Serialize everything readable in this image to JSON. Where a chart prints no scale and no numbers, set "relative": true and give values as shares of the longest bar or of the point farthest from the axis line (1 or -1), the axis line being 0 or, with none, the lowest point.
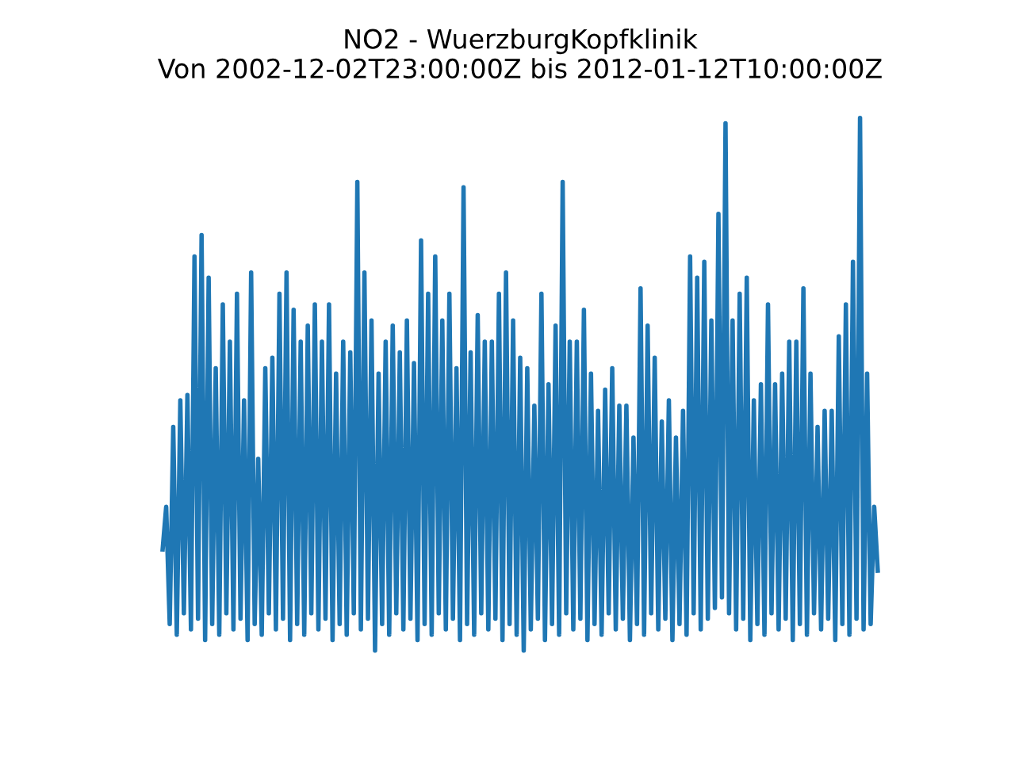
{
  "chart_data": {
    "type": "line",
    "title": "NO2 - WuerzburgKopfklinik",
    "subtitle": "Von 2002-12-02T23:00:00Z bis 2012-01-12T10:00:00Z",
    "relative": true,
    "legend": false,
    "marker": "none",
    "line_style": "solid",
    "categories": [
      null,
      null,
      null,
      null,
      null,
      null,
      null,
      null,
      null,
      null,
      null,
      null,
      null,
      null,
      null,
      null,
      null,
      null,
      null,
      null,
      null,
      null,
      null,
      null,
      null,
      null,
      null,
      null,
      null,
      null,
      null,
      null,
      null,
      null,
      null,
      null,
      null,
      null,
      null,
      null,
      null,
      null,
      null,
      null,
      null,
      null,
      null,
      null,
      null,
      null,
      null,
      null,
      null,
      null,
      null,
      null,
      null,
      null,
      null,
      null,
      null,
      null,
      null,
      null,
      null,
      null,
      null,
      null,
      null,
      null,
      null,
      null,
      null,
      null,
      null,
      null,
      null,
      null,
      null,
      null,
      null,
      null,
      null,
      null,
      null,
      null,
      null,
      null,
      null,
      null,
      null,
      null,
      null,
      null,
      null,
      null,
      null,
      null,
      null,
      null,
      null,
      null,
      null,
      null,
      null,
      null,
      null,
      null,
      null,
      null,
      null,
      null,
      null,
      null,
      null,
      null,
      null,
      null,
      null,
      null,
      null,
      null,
      null,
      null,
      null,
      null,
      null,
      null,
      null,
      null,
      null,
      null,
      null,
      null,
      null,
      null,
      null,
      null,
      null,
      null,
      null,
      null,
      null,
      null,
      null,
      null,
      null,
      null,
      null,
      null,
      null,
      null,
      null,
      null,
      null,
      null,
      null,
      null,
      null,
      null,
      null,
      null,
      null,
      null,
      null,
      null,
      null,
      null,
      null,
      null,
      null,
      null,
      null,
      null,
      null,
      null,
      null,
      null,
      null,
      null,
      null,
      null,
      null,
      null,
      null,
      null,
      null,
      null,
      null,
      null,
      null,
      null,
      null,
      null,
      null,
      null,
      null,
      null,
      null,
      null,
      null,
      null,
      null
    ],
    "series": [
      {
        "color": "#1f77b4",
        "values": [
          0.19,
          0.27,
          0.05,
          0.42,
          0.03,
          0.47,
          0.07,
          0.48,
          0.04,
          0.74,
          0.06,
          0.78,
          0.02,
          0.7,
          0.05,
          0.53,
          0.03,
          0.65,
          0.07,
          0.58,
          0.04,
          0.67,
          0.06,
          0.47,
          0.02,
          0.71,
          0.05,
          0.36,
          0.03,
          0.53,
          0.07,
          0.55,
          0.04,
          0.67,
          0.06,
          0.71,
          0.02,
          0.64,
          0.05,
          0.58,
          0.03,
          0.61,
          0.07,
          0.65,
          0.04,
          0.58,
          0.06,
          0.65,
          0.02,
          0.52,
          0.05,
          0.58,
          0.03,
          0.56,
          0.07,
          0.88,
          0.04,
          0.71,
          0.06,
          0.62,
          0.0,
          0.52,
          0.05,
          0.58,
          0.03,
          0.61,
          0.07,
          0.56,
          0.04,
          0.62,
          0.06,
          0.54,
          0.02,
          0.77,
          0.05,
          0.67,
          0.03,
          0.74,
          0.07,
          0.62,
          0.04,
          0.67,
          0.06,
          0.53,
          0.02,
          0.87,
          0.05,
          0.56,
          0.03,
          0.63,
          0.07,
          0.58,
          0.04,
          0.58,
          0.06,
          0.67,
          0.02,
          0.71,
          0.05,
          0.62,
          0.03,
          0.55,
          0.0,
          0.53,
          0.04,
          0.46,
          0.06,
          0.67,
          0.02,
          0.5,
          0.05,
          0.61,
          0.03,
          0.88,
          0.07,
          0.58,
          0.04,
          0.58,
          0.06,
          0.64,
          0.02,
          0.52,
          0.05,
          0.45,
          0.03,
          0.49,
          0.07,
          0.53,
          0.04,
          0.46,
          0.06,
          0.46,
          0.02,
          0.4,
          0.05,
          0.68,
          0.03,
          0.61,
          0.07,
          0.55,
          0.04,
          0.43,
          0.06,
          0.47,
          0.02,
          0.4,
          0.05,
          0.45,
          0.03,
          0.74,
          0.07,
          0.7,
          0.04,
          0.73,
          0.06,
          0.62,
          0.08,
          0.82,
          0.1,
          0.99,
          0.07,
          0.62,
          0.04,
          0.67,
          0.06,
          0.7,
          0.02,
          0.47,
          0.05,
          0.5,
          0.03,
          0.65,
          0.07,
          0.5,
          0.04,
          0.52,
          0.06,
          0.58,
          0.02,
          0.58,
          0.05,
          0.68,
          0.03,
          0.52,
          0.07,
          0.42,
          0.04,
          0.45,
          0.06,
          0.45,
          0.02,
          0.59,
          0.05,
          0.65,
          0.03,
          0.73,
          0.06,
          1.0,
          0.04,
          0.52,
          0.05,
          0.27,
          0.15
        ]
      }
    ]
  }
}
